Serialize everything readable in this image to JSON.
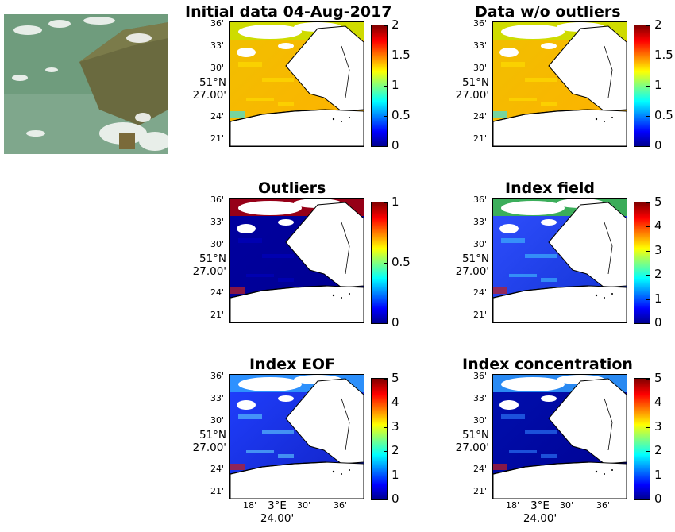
{
  "panels": [
    {
      "id": "initial",
      "title": "Initial data 04-Aug-2017",
      "cbar_ticks": [
        "2",
        "1.5",
        "1",
        "0.5",
        "0"
      ],
      "cmax": 2
    },
    {
      "id": "wo_outliers",
      "title": "Data w/o outliers",
      "cbar_ticks": [
        "2",
        "1.5",
        "1",
        "0.5",
        "0"
      ],
      "cmax": 2
    },
    {
      "id": "outliers",
      "title": "Outliers",
      "cbar_ticks": [
        "1",
        "0.5",
        "0"
      ],
      "cmax": 1
    },
    {
      "id": "index_field",
      "title": "Index field",
      "cbar_ticks": [
        "5",
        "4",
        "3",
        "2",
        "1",
        "0"
      ],
      "cmax": 5
    },
    {
      "id": "index_eof",
      "title": "Index EOF",
      "cbar_ticks": [
        "5",
        "4",
        "3",
        "2",
        "1",
        "0"
      ],
      "cmax": 5
    },
    {
      "id": "index_conc",
      "title": "Index concentration",
      "cbar_ticks": [
        "5",
        "4",
        "3",
        "2",
        "1",
        "0"
      ],
      "cmax": 5
    }
  ],
  "lat_ticks": [
    "36'",
    "33'",
    "30'",
    "24'",
    "21'"
  ],
  "lat_main": [
    "51°N",
    "27.00'"
  ],
  "lon_ticks": [
    "18'",
    "30'",
    "36'"
  ],
  "lon_main": [
    "3°E",
    "24.00'"
  ],
  "colors": {
    "water_high": "#f5c800",
    "water_low": "#00008f",
    "land": "#ffffff"
  }
}
